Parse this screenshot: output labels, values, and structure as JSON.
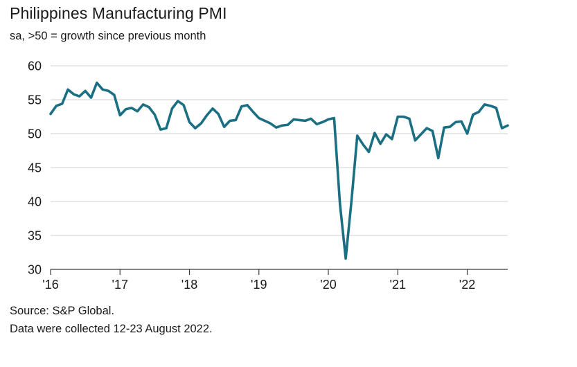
{
  "header": {
    "title": "Philippines Manufacturing PMI",
    "subtitle": "sa, >50 = growth since previous month"
  },
  "footer": {
    "source": "Source: S&P Global.",
    "note": "Data were collected 12-23 August 2022."
  },
  "colors": {
    "line": "#1b6f82",
    "grid": "#d0d0d0",
    "axis": "#3a3a3a"
  },
  "chart_data": {
    "type": "line",
    "title": "Philippines Manufacturing PMI",
    "subtitle": "sa, >50 = growth since previous month",
    "xlabel": "",
    "ylabel": "",
    "ylim": [
      30,
      60
    ],
    "yticks": [
      30,
      35,
      40,
      45,
      50,
      55,
      60
    ],
    "xticks": [
      {
        "label": "'16",
        "year": 2016
      },
      {
        "label": "'17",
        "year": 2017
      },
      {
        "label": "'18",
        "year": 2018
      },
      {
        "label": "'19",
        "year": 2019
      },
      {
        "label": "'20",
        "year": 2020
      },
      {
        "label": "'21",
        "year": 2021
      },
      {
        "label": "'22",
        "year": 2022
      }
    ],
    "grid": "horizontal",
    "start": "2016-01",
    "frequency": "monthly",
    "series": [
      {
        "name": "Philippines Manufacturing PMI",
        "values": [
          52.9,
          54.1,
          54.4,
          56.5,
          55.8,
          55.5,
          56.3,
          55.3,
          57.5,
          56.5,
          56.3,
          55.7,
          52.7,
          53.6,
          53.8,
          53.3,
          54.3,
          53.9,
          52.8,
          50.6,
          50.8,
          53.7,
          54.8,
          54.2,
          51.7,
          50.8,
          51.5,
          52.7,
          53.7,
          52.9,
          51.0,
          51.9,
          52.0,
          54.0,
          54.2,
          53.2,
          52.3,
          51.9,
          51.5,
          50.9,
          51.2,
          51.3,
          52.1,
          52.0,
          51.9,
          52.2,
          51.4,
          51.7,
          52.1,
          52.3,
          39.7,
          31.6,
          40.1,
          49.7,
          48.4,
          47.3,
          50.1,
          48.5,
          49.9,
          49.2,
          52.5,
          52.5,
          52.2,
          49.0,
          49.9,
          50.8,
          50.4,
          46.4,
          50.9,
          51.0,
          51.7,
          51.8,
          50.0,
          52.8,
          53.2,
          54.3,
          54.1,
          53.8,
          50.8,
          51.2
        ]
      }
    ]
  }
}
